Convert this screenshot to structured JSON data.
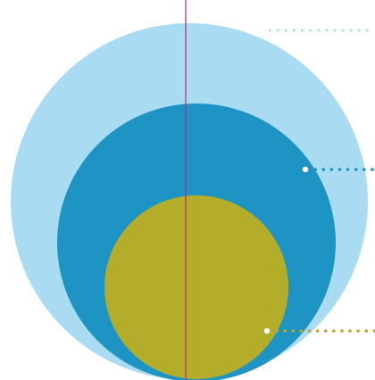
{
  "diagram": {
    "type": "nested-circles",
    "levels": [
      {
        "name": "outer",
        "color": "#a9dcf2",
        "leader_color": "#a9dcf2",
        "leader_style": "dotted"
      },
      {
        "name": "middle",
        "color": "#1d94c4",
        "leader_color": "#1d94c4",
        "leader_style": "dotted"
      },
      {
        "name": "inner",
        "color": "#b3ad2a",
        "leader_color": "#b3ad2a",
        "leader_style": "dotted"
      }
    ],
    "axis": {
      "color": "#b0306e",
      "style": "solid"
    },
    "marker_color": "#ffffff"
  }
}
